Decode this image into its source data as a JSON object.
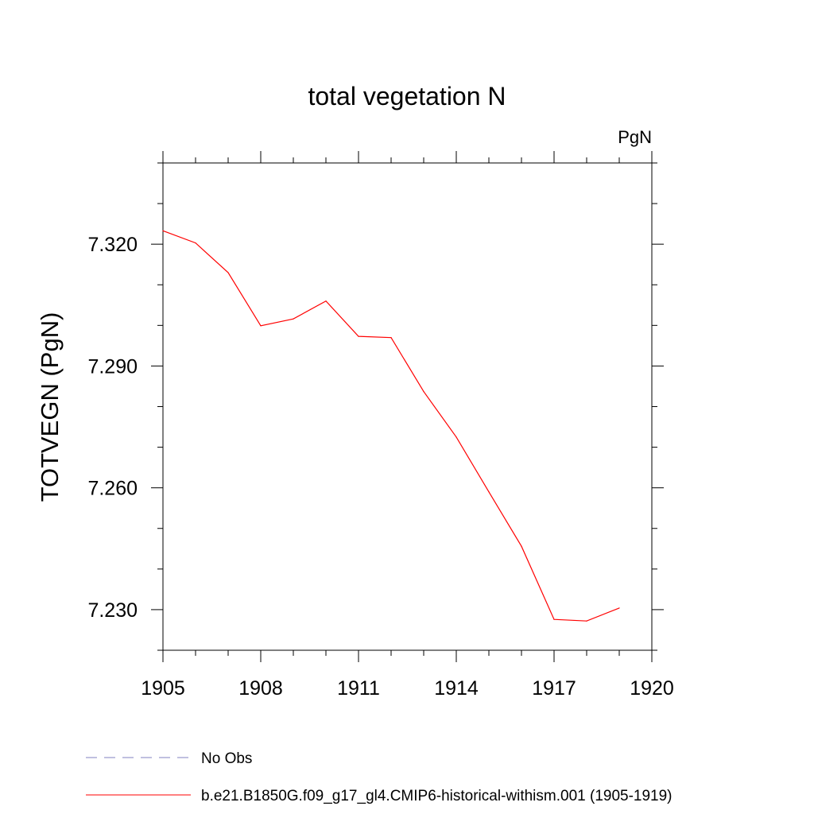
{
  "chart_data": {
    "type": "line",
    "title": "total vegetation N",
    "units_label": "PgN",
    "xlabel": "",
    "ylabel": "TOTVEGN  (PgN)",
    "xlim": [
      1905,
      1920
    ],
    "ylim": [
      7.22,
      7.34
    ],
    "x_ticks": [
      1905,
      1908,
      1911,
      1914,
      1917,
      1920
    ],
    "x_tick_labels": [
      "1905",
      "1908",
      "1911",
      "1914",
      "1917",
      "1920"
    ],
    "y_ticks": [
      7.23,
      7.26,
      7.29,
      7.32
    ],
    "y_tick_labels": [
      "7.230",
      "7.260",
      "7.290",
      "7.320"
    ],
    "grid": false,
    "legend_position": "bottom",
    "series": [
      {
        "name": "b.e21.B1850G.f09_g17_gl4.CMIP6-historical-withism.001 (1905-1919)",
        "color": "#ff0000",
        "style": "solid",
        "x": [
          1905,
          1906,
          1907,
          1908,
          1909,
          1910,
          1911,
          1912,
          1913,
          1914,
          1915,
          1916,
          1917,
          1918,
          1919
        ],
        "y": [
          7.3233,
          7.3203,
          7.313,
          7.2999,
          7.3016,
          7.306,
          7.2973,
          7.297,
          7.2837,
          7.2725,
          7.259,
          7.2456,
          7.2276,
          7.2272,
          7.2304
        ]
      }
    ],
    "legend": [
      {
        "label": "No Obs",
        "color": "#8080c0",
        "style": "dashed"
      },
      {
        "label": "b.e21.B1850G.f09_g17_gl4.CMIP6-historical-withism.001 (1905-1919)",
        "color": "#ff0000",
        "style": "solid"
      }
    ]
  }
}
